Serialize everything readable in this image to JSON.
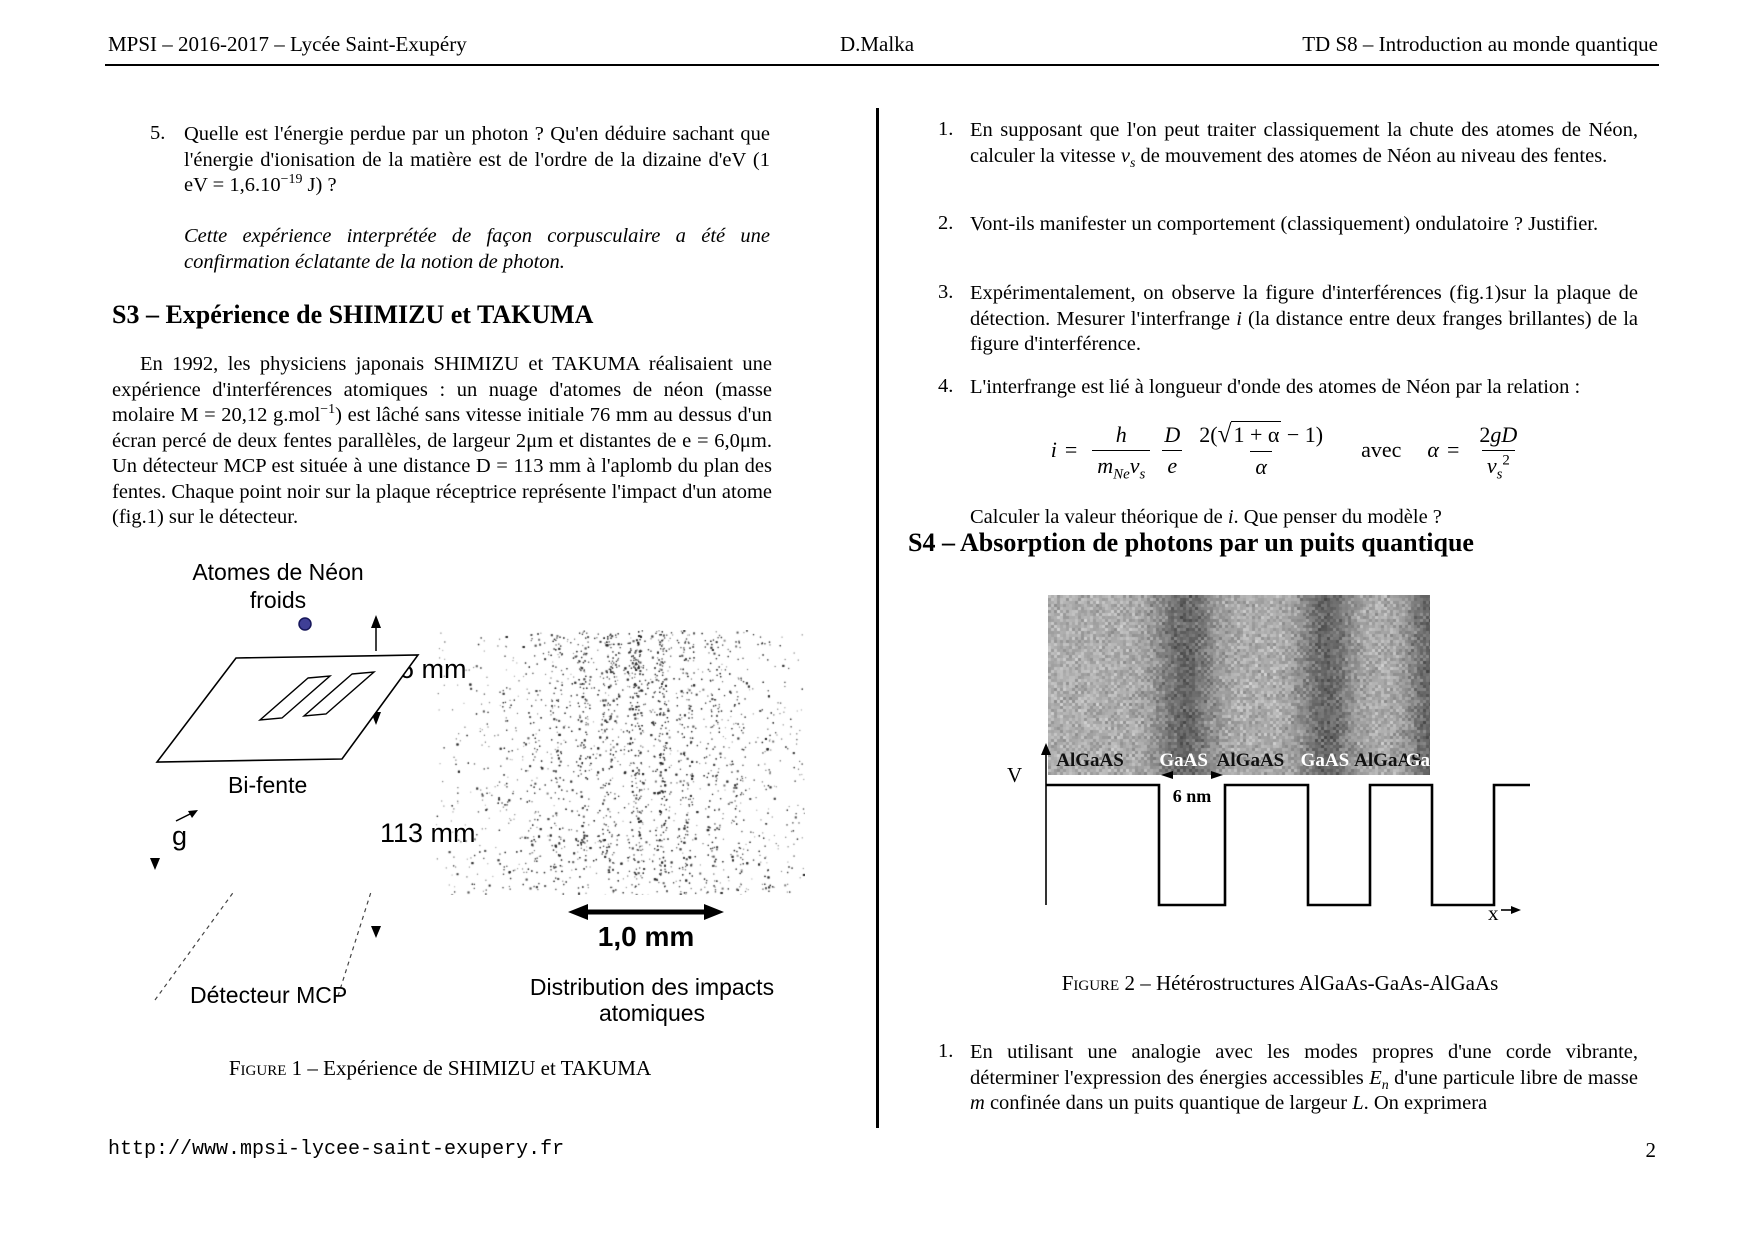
{
  "header": {
    "left": "MPSI – 2016-2017 – Lycée Saint-Exupéry",
    "center": "D.Malka",
    "right": "TD S8 – Introduction au monde quantique"
  },
  "left_column": {
    "item5": {
      "number": "5.",
      "text_a": "Quelle est l'énergie perdue par un photon ? Qu'en déduire sachant que l'énergie d'ionisation de la matière est de l'ordre de la dizaine d'eV (1 eV = 1,6.10",
      "exp": "−19",
      "text_b": " J) ?"
    },
    "remark": "Cette expérience interprétée de façon corpusculaire a été une confirmation éclatante de la notion de photon.",
    "s3_title": "S3 – Expérience de SHIMIZU et TAKUMA",
    "s3_para": {
      "a": "En 1992, les physiciens japonais SHIMIZU et TAKUMA réalisaient une expérience d'interférences atomiques : un nuage d'atomes de néon (masse molaire M = 20,12 g.mol",
      "sup": "−1",
      "b": ") est lâché sans vitesse initiale 76 mm au dessus d'un écran percé de deux fentes parallèles, de largeur 2μm et distantes de e = 6,0μm. Un détecteur MCP est située à une distance D = 113 mm à l'aplomb du plan des fentes. Chaque point noir sur la plaque réceptrice représente l'impact d'un atome (fig.1) sur le détecteur."
    }
  },
  "fig1": {
    "labels": {
      "atoms_line1": "Atomes de Néon",
      "atoms_line2": "froids",
      "d76": "76 mm",
      "bifente": "Bi-fente",
      "g": "g",
      "d113": "113 mm",
      "scale": "1,0 mm",
      "detector": "Détecteur MCP",
      "dist_line1": "Distribution des impacts",
      "dist_line2": "atomiques"
    },
    "dot_color": "#3f3f96",
    "caption_tag": "Figure 1",
    "caption_rest": " – Expérience de SHIMIZU et TAKUMA"
  },
  "right_column": {
    "items": [
      {
        "number": "1.",
        "a": "En supposant que l'on peut traiter classiquement la chute des atomes de Néon, calculer la vitesse ",
        "var": "v",
        "sub": "s",
        "b": " de mouvement des atomes de Néon au niveau des fentes."
      },
      {
        "number": "2.",
        "a": "Vont-ils manifester un comportement (classiquement) ondulatoire ? Justifier."
      },
      {
        "number": "3.",
        "a": "Expérimentalement, on observe la figure d'interférences (fig.1)sur la plaque de détection. Mesurer l'interfrange ",
        "var": "i",
        "b": " (la distance entre deux franges brillantes) de la figure d'interférence."
      },
      {
        "number": "4.",
        "a": "L'interfrange est lié à longueur d'onde des atomes de Néon par la relation :"
      }
    ],
    "formula": {
      "i": "i",
      "eq1": "=",
      "f1n": "h",
      "f1dm": "m",
      "f1dmsub": "Ne",
      "f1dv": "v",
      "f1dvsub": "s",
      "f2n": "D",
      "f2d": "e",
      "f3pre": "2(",
      "f3sqrt": "√",
      "f3rad": "1 + α",
      "f3post": " − 1)",
      "f3d": "α",
      "avec": "avec",
      "al": "α",
      "eq2": "=",
      "f4n1": "2",
      "f4n2": "gD",
      "f4dv": "v",
      "f4dvsub": "s",
      "f4dvsup": "2"
    },
    "calc": {
      "a": "Calculer la valeur théorique de ",
      "i": "i",
      "b": ". Que penser du modèle ?"
    },
    "s4_title": "S4 – Absorption de photons par un puits quantique",
    "s4_item": {
      "number": "1.",
      "a": "En utilisant une analogie avec les modes propres d'une corde vibrante, déterminer l'expression des énergies accessibles ",
      "E": "E",
      "Esub": "n",
      "b": " d'une particule libre de masse ",
      "m": "m",
      "c": " confinée dans un puits quantique de largeur ",
      "L": "L",
      "d": ". On exprimera"
    }
  },
  "fig2": {
    "materials": [
      "AlGaAS",
      "GaAS",
      "AlGaAS",
      "GaAS",
      "AlGaAS",
      "GaAS"
    ],
    "v_label": "V",
    "x_label": "x",
    "width_label": "6 nm",
    "caption_tag": "Figure 2",
    "caption_rest": " – Hétérostructures AlGaAs-GaAs-AlGaAs"
  },
  "footer": {
    "url": "http://www.mpsi-lycee-saint-exupery.fr",
    "page": "2"
  }
}
